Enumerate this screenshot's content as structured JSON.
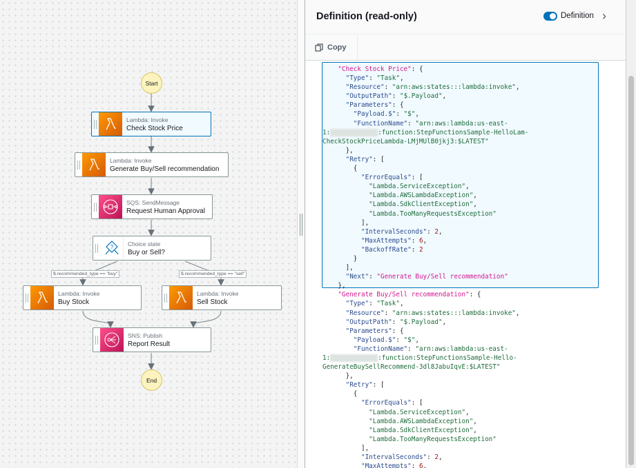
{
  "panel": {
    "title": "Definition (read-only)",
    "toggle_label": "Definition",
    "toggle_on": true,
    "copy_label": "Copy"
  },
  "graph": {
    "start": "Start",
    "end": "End",
    "nodes": [
      {
        "type": "Lambda: Invoke",
        "name": "Check Stock Price",
        "icon": "lambda-icon",
        "selected": true
      },
      {
        "type": "Lambda: Invoke",
        "name": "Generate Buy/Sell recommendation",
        "icon": "lambda-icon"
      },
      {
        "type": "SQS: SendMessage",
        "name": "Request Human Approval",
        "icon": "sqs-icon"
      },
      {
        "type": "Choice state",
        "name": "Buy or Sell?",
        "icon": "choice-icon"
      },
      {
        "type": "Lambda: Invoke",
        "name": "Buy Stock",
        "icon": "lambda-icon"
      },
      {
        "type": "Lambda: Invoke",
        "name": "Sell Stock",
        "icon": "lambda-icon"
      },
      {
        "type": "SNS: Publish",
        "name": "Report Result",
        "icon": "sns-icon"
      }
    ],
    "conditions": [
      "$.recommended_type == \"buy\"",
      "$.recommended_type == \"sell\""
    ]
  },
  "code": [
    [
      [
        "p",
        "    "
      ],
      [
        "st",
        "\"Check Stock Price\""
      ],
      [
        "p",
        ": {"
      ]
    ],
    [
      [
        "p",
        "      "
      ],
      [
        "k",
        "\"Type\""
      ],
      [
        "p",
        ": "
      ],
      [
        "s",
        "\"Task\""
      ],
      [
        "p",
        ","
      ]
    ],
    [
      [
        "p",
        "      "
      ],
      [
        "k",
        "\"Resource\""
      ],
      [
        "p",
        ": "
      ],
      [
        "s",
        "\"arn:aws:states:::lambda:invoke\""
      ],
      [
        "p",
        ","
      ]
    ],
    [
      [
        "p",
        "      "
      ],
      [
        "k",
        "\"OutputPath\""
      ],
      [
        "p",
        ": "
      ],
      [
        "s",
        "\"$.Payload\""
      ],
      [
        "p",
        ","
      ]
    ],
    [
      [
        "p",
        "      "
      ],
      [
        "k",
        "\"Parameters\""
      ],
      [
        "p",
        ": {"
      ]
    ],
    [
      [
        "p",
        "        "
      ],
      [
        "k",
        "\"Payload.$\""
      ],
      [
        "p",
        ": "
      ],
      [
        "s",
        "\"$\""
      ],
      [
        "p",
        ","
      ]
    ],
    [
      [
        "p",
        "        "
      ],
      [
        "k",
        "\"FunctionName\""
      ],
      [
        "p",
        ": "
      ],
      [
        "s",
        "\"arn:aws:lambda:us-east-"
      ]
    ],
    [
      [
        "s",
        "1:"
      ],
      [
        "b",
        ""
      ],
      [
        "s",
        ":function:StepFunctionsSample-HelloLam-"
      ]
    ],
    [
      [
        "s",
        "CheckStockPriceLambda-LMjMUlB0jkj3:$LATEST\""
      ]
    ],
    [
      [
        "p",
        "      },"
      ]
    ],
    [
      [
        "p",
        "      "
      ],
      [
        "k",
        "\"Retry\""
      ],
      [
        "p",
        ": ["
      ]
    ],
    [
      [
        "p",
        "        {"
      ]
    ],
    [
      [
        "p",
        "          "
      ],
      [
        "k",
        "\"ErrorEquals\""
      ],
      [
        "p",
        ": ["
      ]
    ],
    [
      [
        "p",
        "            "
      ],
      [
        "s",
        "\"Lambda.ServiceException\""
      ],
      [
        "p",
        ","
      ]
    ],
    [
      [
        "p",
        "            "
      ],
      [
        "s",
        "\"Lambda.AWSLambdaException\""
      ],
      [
        "p",
        ","
      ]
    ],
    [
      [
        "p",
        "            "
      ],
      [
        "s",
        "\"Lambda.SdkClientException\""
      ],
      [
        "p",
        ","
      ]
    ],
    [
      [
        "p",
        "            "
      ],
      [
        "s",
        "\"Lambda.TooManyRequestsException\""
      ]
    ],
    [
      [
        "p",
        "          ],"
      ]
    ],
    [
      [
        "p",
        "          "
      ],
      [
        "k",
        "\"IntervalSeconds\""
      ],
      [
        "p",
        ": "
      ],
      [
        "n",
        "2"
      ],
      [
        "p",
        ","
      ]
    ],
    [
      [
        "p",
        "          "
      ],
      [
        "k",
        "\"MaxAttempts\""
      ],
      [
        "p",
        ": "
      ],
      [
        "n",
        "6"
      ],
      [
        "p",
        ","
      ]
    ],
    [
      [
        "p",
        "          "
      ],
      [
        "k",
        "\"BackoffRate\""
      ],
      [
        "p",
        ": "
      ],
      [
        "n",
        "2"
      ]
    ],
    [
      [
        "p",
        "        }"
      ]
    ],
    [
      [
        "p",
        "      ],"
      ]
    ],
    [
      [
        "p",
        "      "
      ],
      [
        "k",
        "\"Next\""
      ],
      [
        "p",
        ": "
      ],
      [
        "st",
        "\"Generate Buy/Sell recommendation\""
      ]
    ],
    [
      [
        "p",
        "    },"
      ]
    ],
    [
      [
        "p",
        "    "
      ],
      [
        "st",
        "\"Generate Buy/Sell recommendation\""
      ],
      [
        "p",
        ": {"
      ]
    ],
    [
      [
        "p",
        "      "
      ],
      [
        "k",
        "\"Type\""
      ],
      [
        "p",
        ": "
      ],
      [
        "s",
        "\"Task\""
      ],
      [
        "p",
        ","
      ]
    ],
    [
      [
        "p",
        "      "
      ],
      [
        "k",
        "\"Resource\""
      ],
      [
        "p",
        ": "
      ],
      [
        "s",
        "\"arn:aws:states:::lambda:invoke\""
      ],
      [
        "p",
        ","
      ]
    ],
    [
      [
        "p",
        "      "
      ],
      [
        "k",
        "\"OutputPath\""
      ],
      [
        "p",
        ": "
      ],
      [
        "s",
        "\"$.Payload\""
      ],
      [
        "p",
        ","
      ]
    ],
    [
      [
        "p",
        "      "
      ],
      [
        "k",
        "\"Parameters\""
      ],
      [
        "p",
        ": {"
      ]
    ],
    [
      [
        "p",
        "        "
      ],
      [
        "k",
        "\"Payload.$\""
      ],
      [
        "p",
        ": "
      ],
      [
        "s",
        "\"$\""
      ],
      [
        "p",
        ","
      ]
    ],
    [
      [
        "p",
        "        "
      ],
      [
        "k",
        "\"FunctionName\""
      ],
      [
        "p",
        ": "
      ],
      [
        "s",
        "\"arn:aws:lambda:us-east-"
      ]
    ],
    [
      [
        "s",
        "1:"
      ],
      [
        "b",
        ""
      ],
      [
        "s",
        ":function:StepFunctionsSample-Hello-"
      ]
    ],
    [
      [
        "s",
        "GenerateBuySellRecommend-3dl8JabuIqvE:$LATEST\""
      ]
    ],
    [
      [
        "p",
        "      },"
      ]
    ],
    [
      [
        "p",
        "      "
      ],
      [
        "k",
        "\"Retry\""
      ],
      [
        "p",
        ": ["
      ]
    ],
    [
      [
        "p",
        "        {"
      ]
    ],
    [
      [
        "p",
        "          "
      ],
      [
        "k",
        "\"ErrorEquals\""
      ],
      [
        "p",
        ": ["
      ]
    ],
    [
      [
        "p",
        "            "
      ],
      [
        "s",
        "\"Lambda.ServiceException\""
      ],
      [
        "p",
        ","
      ]
    ],
    [
      [
        "p",
        "            "
      ],
      [
        "s",
        "\"Lambda.AWSLambdaException\""
      ],
      [
        "p",
        ","
      ]
    ],
    [
      [
        "p",
        "            "
      ],
      [
        "s",
        "\"Lambda.SdkClientException\""
      ],
      [
        "p",
        ","
      ]
    ],
    [
      [
        "p",
        "            "
      ],
      [
        "s",
        "\"Lambda.TooManyRequestsException\""
      ]
    ],
    [
      [
        "p",
        "          ],"
      ]
    ],
    [
      [
        "p",
        "          "
      ],
      [
        "k",
        "\"IntervalSeconds\""
      ],
      [
        "p",
        ": "
      ],
      [
        "n",
        "2"
      ],
      [
        "p",
        ","
      ]
    ],
    [
      [
        "p",
        "          "
      ],
      [
        "k",
        "\"MaxAttempts\""
      ],
      [
        "p",
        ": "
      ],
      [
        "n",
        "6"
      ],
      [
        "p",
        ","
      ]
    ]
  ]
}
